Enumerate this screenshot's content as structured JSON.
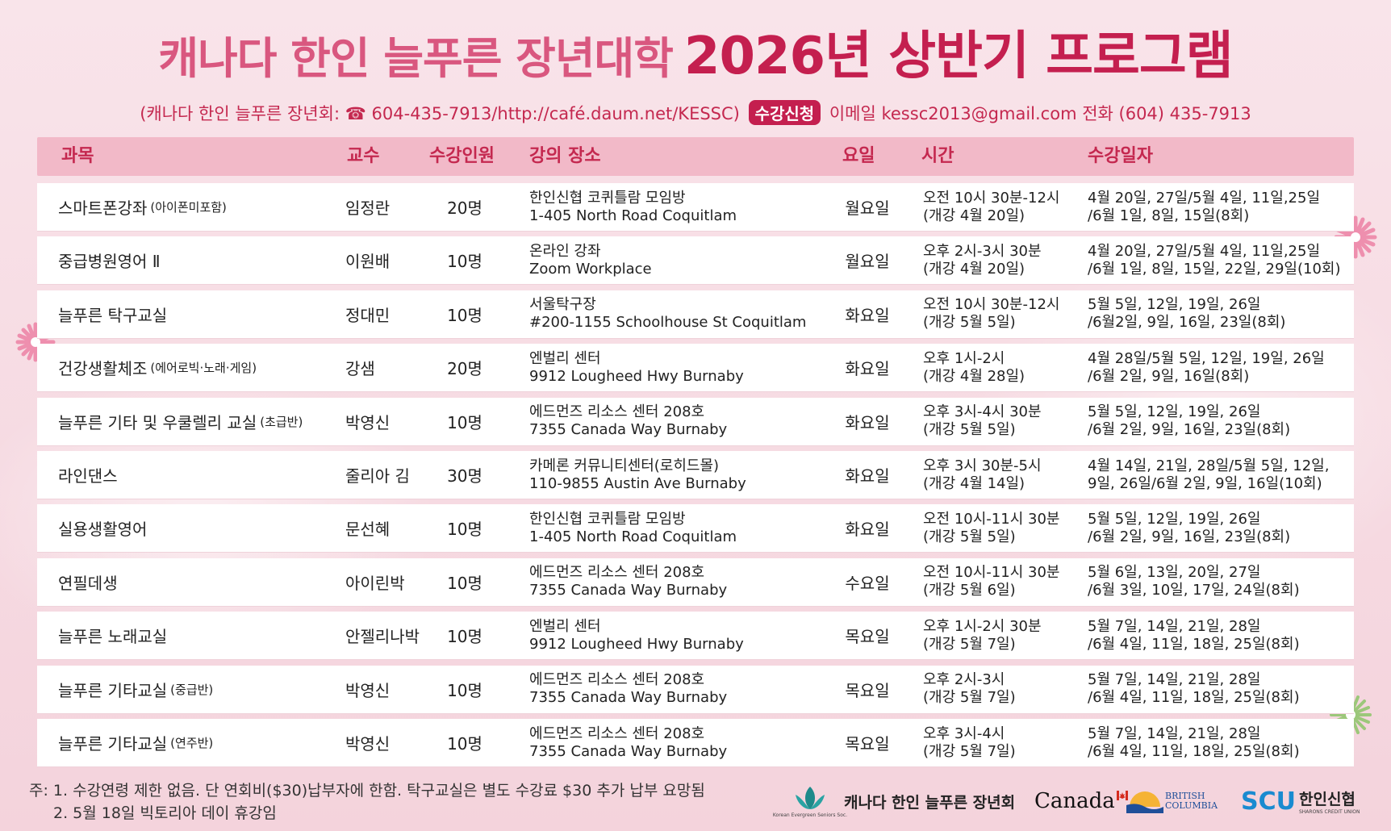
{
  "header": {
    "title_part1": "캐나다 한인 늘푸른 장년대학",
    "title_part2": "2026년 상반기 프로그램"
  },
  "contact": {
    "prefix": "(캐나다 한인 늘푸른 장년회: ☎ 604-435-7913/http://café.daum.net/KESSC)",
    "badge": "수강신청",
    "suffix": "이메일 kessc2013@gmail.com 전화 (604) 435-7913"
  },
  "table": {
    "headers": [
      "과목",
      "교수",
      "수강인원",
      "강의 장소",
      "요일",
      "시간",
      "수강일자"
    ],
    "rows": [
      {
        "subject": "스마트폰강좌",
        "subject_note": "(아이폰미포함)",
        "teacher": "임정란",
        "capacity": "20명",
        "place1": "한인신협 코퀴틀람 모임방",
        "place2": "1-405 North Road Coquitlam",
        "day": "월요일",
        "time1": "오전 10시 30분-12시",
        "time2": "(개강 4월 20일)",
        "dates1": "4월 20일, 27일/5월 4일, 11일,25일",
        "dates2": "/6월 1일, 8일, 15일(8회)"
      },
      {
        "subject": "중급병원영어 Ⅱ",
        "subject_note": "",
        "teacher": "이원배",
        "capacity": "10명",
        "place1": "온라인 강좌",
        "place2": "Zoom Workplace",
        "day": "월요일",
        "time1": "오후 2시-3시 30분",
        "time2": "(개강 4월 20일)",
        "dates1": "4월 20일, 27일/5월 4일, 11일,25일",
        "dates2": "/6월 1일, 8일, 15일, 22일, 29일(10회)"
      },
      {
        "subject": "늘푸른 탁구교실",
        "subject_note": "",
        "teacher": "정대민",
        "capacity": "10명",
        "place1": "서울탁구장",
        "place2": "#200-1155 Schoolhouse St Coquitlam",
        "day": "화요일",
        "time1": "오전 10시 30분-12시",
        "time2": "(개강 5월 5일)",
        "dates1": "5월 5일, 12일, 19일, 26일",
        "dates2": "/6월2일, 9일, 16일, 23일(8회)"
      },
      {
        "subject": "건강생활체조",
        "subject_note": "(에어로빅·노래·게임)",
        "teacher": "강샘",
        "capacity": "20명",
        "place1": "엔벌리 센터",
        "place2": "9912 Lougheed Hwy Burnaby",
        "day": "화요일",
        "time1": "오후 1시-2시",
        "time2": "(개강 4월 28일)",
        "dates1": "4월 28일/5월 5일, 12일, 19일, 26일",
        "dates2": "/6월 2일, 9일, 16일(8회)"
      },
      {
        "subject": "늘푸른 기타 및 우쿨렐리 교실",
        "subject_note": "(초급반)",
        "teacher": "박영신",
        "capacity": "10명",
        "place1": "에드먼즈 리소스 센터 208호",
        "place2": "7355 Canada Way Burnaby",
        "day": "화요일",
        "time1": "오후 3시-4시 30분",
        "time2": "(개강 5월 5일)",
        "dates1": "5월 5일, 12일, 19일, 26일",
        "dates2": "/6월 2일, 9일, 16일, 23일(8회)"
      },
      {
        "subject": "라인댄스",
        "subject_note": "",
        "teacher": "줄리아 김",
        "capacity": "30명",
        "place1": "카메론 커뮤니티센터(로히드몰)",
        "place2": "110-9855 Austin Ave Burnaby",
        "day": "화요일",
        "time1": "오후 3시 30분-5시",
        "time2": "(개강 4월 14일)",
        "dates1": "4월 14일, 21일, 28일/5월 5일, 12일,",
        "dates2": "9일, 26일/6월 2일, 9일, 16일(10회)"
      },
      {
        "subject": "실용생활영어",
        "subject_note": "",
        "teacher": "문선혜",
        "capacity": "10명",
        "place1": "한인신협 코퀴틀람 모임방",
        "place2": "1-405 North Road Coquitlam",
        "day": "화요일",
        "time1": "오전 10시-11시 30분",
        "time2": "(개강 5월 5일)",
        "dates1": "5월 5일, 12일, 19일, 26일",
        "dates2": "/6월 2일, 9일, 16일, 23일(8회)"
      },
      {
        "subject": "연필데생",
        "subject_note": "",
        "teacher": "아이린박",
        "capacity": "10명",
        "place1": "에드먼즈 리소스 센터 208호",
        "place2": "7355 Canada Way Burnaby",
        "day": "수요일",
        "time1": "오전 10시-11시 30분",
        "time2": "(개강 5월 6일)",
        "dates1": "5월 6일, 13일, 20일, 27일",
        "dates2": "/6월 3일, 10일, 17일, 24일(8회)"
      },
      {
        "subject": "늘푸른 노래교실",
        "subject_note": "",
        "teacher": "안젤리나박",
        "capacity": "10명",
        "place1": "엔벌리 센터",
        "place2": "9912 Lougheed Hwy Burnaby",
        "day": "목요일",
        "time1": "오후 1시-2시 30분",
        "time2": "(개강 5월 7일)",
        "dates1": "5월 7일, 14일, 21일, 28일",
        "dates2": "/6월 4일, 11일, 18일, 25일(8회)"
      },
      {
        "subject": "늘푸른 기타교실",
        "subject_note": "(중급반)",
        "teacher": "박영신",
        "capacity": "10명",
        "place1": "에드먼즈 리소스 센터 208호",
        "place2": "7355 Canada Way Burnaby",
        "day": "목요일",
        "time1": "오후 2시-3시",
        "time2": "(개강 5월 7일)",
        "dates1": "5월 7일, 14일, 21일, 28일",
        "dates2": "/6월 4일, 11일, 18일, 25일(8회)"
      },
      {
        "subject": "늘푸른 기타교실",
        "subject_note": "(연주반)",
        "teacher": "박영신",
        "capacity": "10명",
        "place1": "에드먼즈 리소스 센터 208호",
        "place2": "7355 Canada Way Burnaby",
        "day": "목요일",
        "time1": "오후 3시-4시",
        "time2": "(개강 5월 7일)",
        "dates1": "5월 7일, 14일, 21일, 28일",
        "dates2": "/6월 4일, 11일, 18일, 25일(8회)"
      }
    ]
  },
  "notes": {
    "line1": "주: 1. 수강연령 제한 없음. 단 연회비($30)납부자에 한함.  탁구교실은 별도 수강료 $30 추가 납부 요망됨",
    "line2": "2. 5월 18일 빅토리아 데이 휴강임"
  },
  "footer": {
    "org_name": "캐나다 한인 늘푸른 장년회",
    "org_logo_small": "Korean Evergreen Seniors Soc.",
    "canada": "Canada",
    "bc_line1": "BRITISH",
    "bc_line2": "COLUMBIA",
    "scu": "SCU",
    "scu_kr": "한인신협",
    "scu_sub": "SHARONS CREDIT UNION"
  },
  "colors": {
    "title_light": "#d9577f",
    "title_dark": "#c41f4f",
    "header_bar": "#f2b9c8",
    "background": "#f6dde4"
  }
}
